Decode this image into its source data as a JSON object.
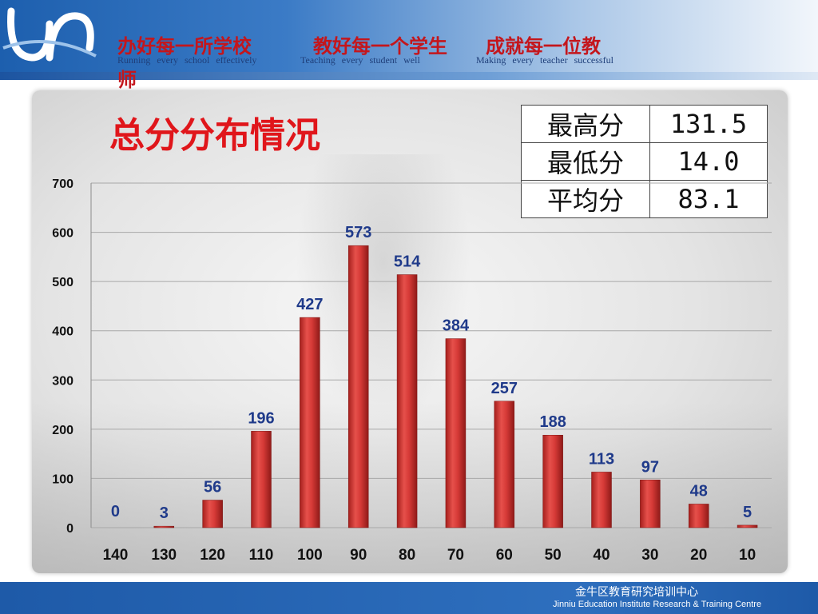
{
  "header": {
    "slogans": [
      "办好每一所学校",
      "教好每一个学生",
      "成就每一位教"
    ],
    "slogan_wrap": "师",
    "english": [
      "Running every school effectively",
      "Teaching every student well",
      "Making every teacher successful"
    ]
  },
  "stats": [
    {
      "label": "最高分",
      "value": "131.5"
    },
    {
      "label": "最低分",
      "value": "14.0"
    },
    {
      "label": "平均分",
      "value": "83.1"
    }
  ],
  "chart_data": {
    "type": "bar",
    "title": "总分分布情况",
    "categories": [
      "140",
      "130",
      "120",
      "110",
      "100",
      "90",
      "80",
      "70",
      "60",
      "50",
      "40",
      "30",
      "20",
      "10"
    ],
    "values": [
      0,
      3,
      56,
      196,
      427,
      573,
      514,
      384,
      257,
      188,
      113,
      97,
      48,
      5
    ],
    "ylim": [
      0,
      700
    ],
    "yticks": [
      0,
      100,
      200,
      300,
      400,
      500,
      600,
      700
    ],
    "grid": true,
    "bar_color": "#d63a37"
  },
  "footer": {
    "cn": "金牛区教育研究培训中心",
    "en": "Jinniu Education Institute Research & Training Centre"
  }
}
